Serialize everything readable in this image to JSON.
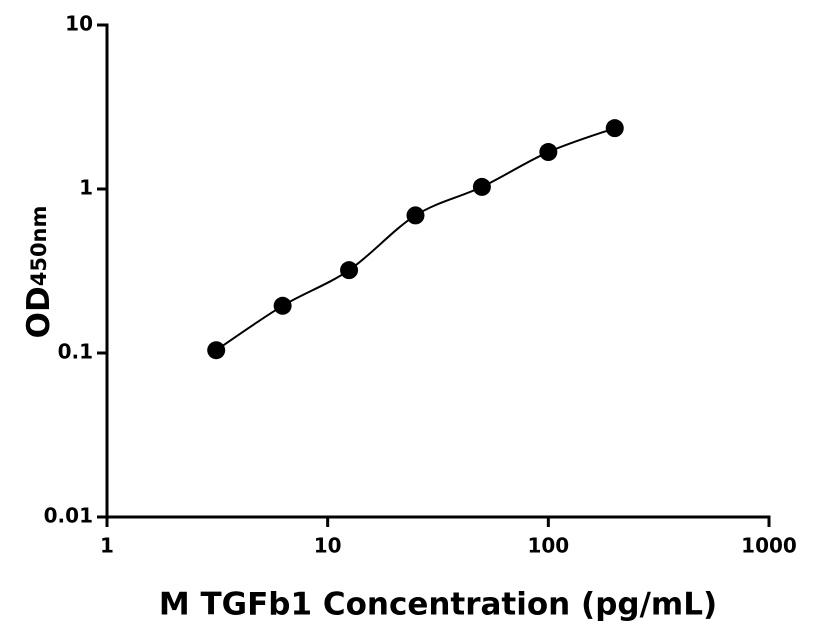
{
  "chart_data": {
    "type": "scatter",
    "xlabel": "M TGFb1 Concentration (pg/mL)",
    "ylabel": "OD",
    "ylabel_sub": "450nm",
    "xscale": "log",
    "yscale": "log",
    "xlim": [
      1,
      1000
    ],
    "xticks": [
      1,
      10,
      100,
      1000
    ],
    "ylim": [
      0.01,
      10
    ],
    "yticks": [
      0.01,
      0.1,
      1,
      10
    ],
    "fit_line": true,
    "series": [
      {
        "color": "#000000",
        "x": [
          3.125,
          6.25,
          12.5,
          25,
          50,
          100,
          200
        ],
        "values": [
          0.104,
          0.194,
          0.32,
          0.69,
          1.03,
          1.68,
          2.35
        ]
      }
    ]
  }
}
